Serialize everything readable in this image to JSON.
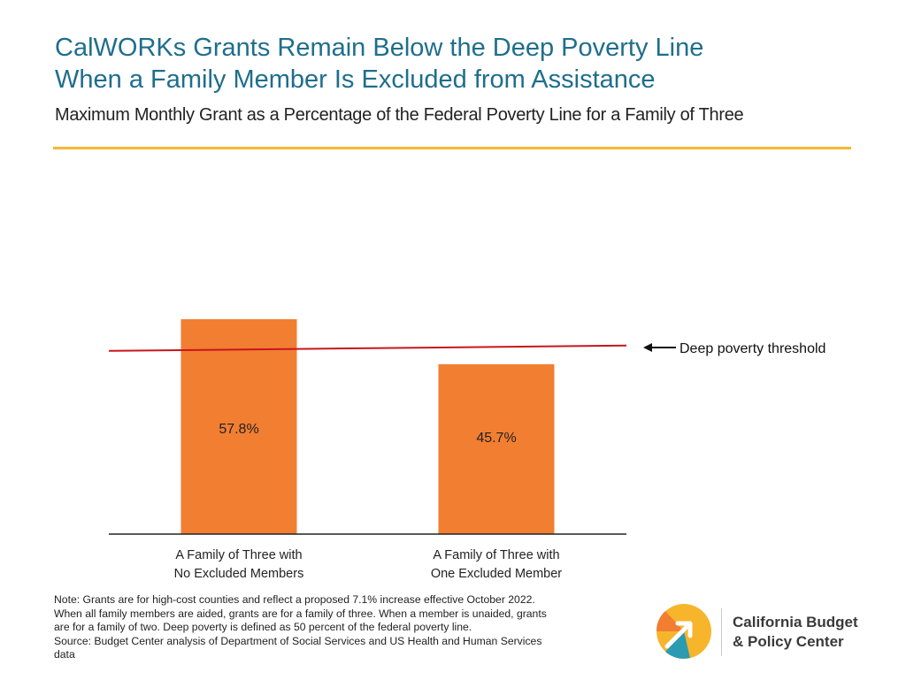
{
  "title": {
    "line1": "CalWORKs Grants Remain Below the Deep Poverty Line",
    "line2": "When a Family Member Is Excluded from Assistance"
  },
  "subtitle": "Maximum Monthly Grant as a Percentage of the Federal Poverty Line for a Family of Three",
  "chart_data": {
    "type": "bar",
    "categories": [
      [
        "A Family of Three with",
        "No Excluded Members"
      ],
      [
        "A Family of Three with",
        "One Excluded Member"
      ]
    ],
    "values": [
      57.8,
      45.7
    ],
    "value_labels": [
      "57.8%",
      "45.7%"
    ],
    "reference_line": {
      "value": 50,
      "label": "Deep poverty threshold"
    },
    "ylim": [
      0,
      65
    ],
    "grid": false,
    "title": "",
    "xlabel": "",
    "ylabel": ""
  },
  "colors": {
    "bar": "#f27e32",
    "reference_line": "#c8161d",
    "title": "#1f6e8c",
    "rule": "#f5b82e"
  },
  "note": {
    "line1": "Note:  Grants are for high-cost counties and reflect a proposed 7.1% increase effective October 2022.",
    "line2": "When all family members are aided, grants are for a family of three. When a member is unaided, grants",
    "line3": "are for a family of two. Deep poverty is defined as 50 percent of the federal poverty line.",
    "line4": "Source: Budget Center analysis of Department of Social Services and US Health and Human Services",
    "line5": "data"
  },
  "logo": {
    "line1": "California Budget",
    "line2": "& Policy Center"
  }
}
